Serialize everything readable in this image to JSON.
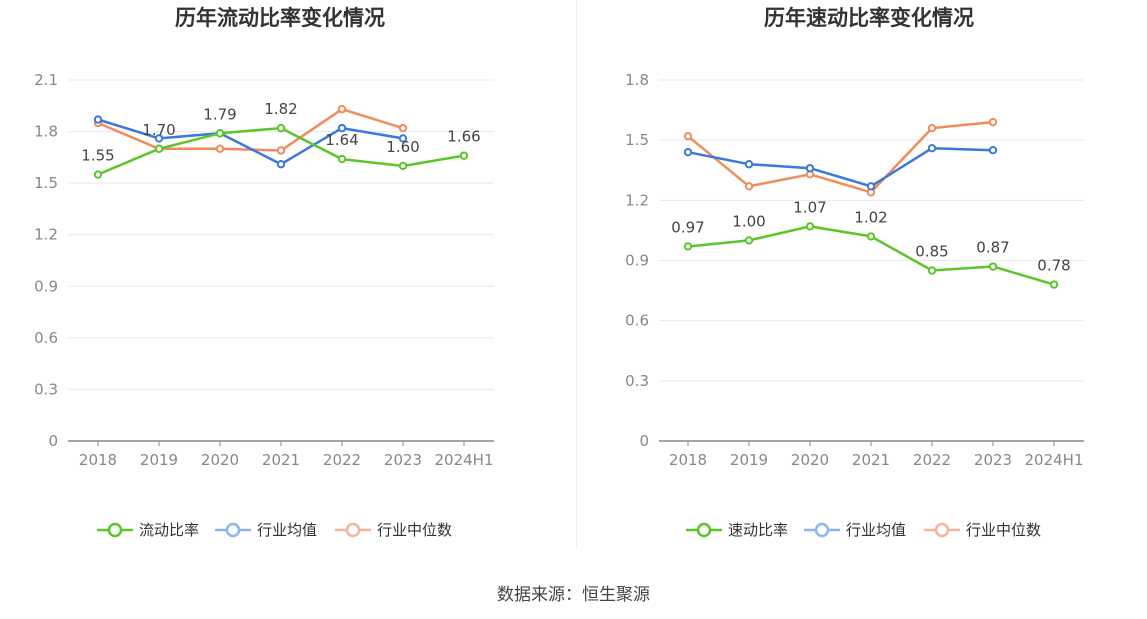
{
  "footer": {
    "source": "数据来源：恒生聚源"
  },
  "chart_data": [
    {
      "type": "line",
      "title": "历年流动比率变化情况",
      "categories": [
        "2018",
        "2019",
        "2020",
        "2021",
        "2022",
        "2023",
        "2024H1"
      ],
      "ylim": [
        0,
        2.1
      ],
      "yticks": [
        "0",
        "0.3",
        "0.6",
        "0.9",
        "1.2",
        "1.5",
        "1.8",
        "2.1"
      ],
      "grid": true,
      "legend_position": "bottom",
      "series": [
        {
          "name": "流动比率",
          "color": "#5cc52a",
          "values": [
            1.55,
            1.7,
            1.79,
            1.82,
            1.64,
            1.6,
            1.66
          ],
          "labels": [
            "1.55",
            "1.70",
            "1.79",
            "1.82",
            "1.64",
            "1.60",
            "1.66"
          ]
        },
        {
          "name": "行业均值",
          "color": "#3a78dc",
          "values": [
            1.87,
            1.76,
            1.79,
            1.61,
            1.82,
            1.76,
            null
          ]
        },
        {
          "name": "行业中位数",
          "color": "#f08c5a",
          "values": [
            1.85,
            1.7,
            1.7,
            1.69,
            1.93,
            1.82,
            null
          ]
        }
      ]
    },
    {
      "type": "line",
      "title": "历年速动比率变化情况",
      "categories": [
        "2018",
        "2019",
        "2020",
        "2021",
        "2022",
        "2023",
        "2024H1"
      ],
      "ylim": [
        0,
        1.8
      ],
      "yticks": [
        "0",
        "0.3",
        "0.6",
        "0.9",
        "1.2",
        "1.5",
        "1.8"
      ],
      "grid": true,
      "legend_position": "bottom",
      "series": [
        {
          "name": "速动比率",
          "color": "#5cc52a",
          "values": [
            0.97,
            1.0,
            1.07,
            1.02,
            0.85,
            0.87,
            0.78
          ],
          "labels": [
            "0.97",
            "1.00",
            "1.07",
            "1.02",
            "0.85",
            "0.87",
            "0.78"
          ]
        },
        {
          "name": "行业均值",
          "color": "#3a78dc",
          "values": [
            1.44,
            1.38,
            1.36,
            1.27,
            1.46,
            1.45,
            null
          ]
        },
        {
          "name": "行业中位数",
          "color": "#f08c5a",
          "values": [
            1.52,
            1.27,
            1.33,
            1.24,
            1.56,
            1.59,
            null
          ]
        }
      ]
    }
  ]
}
